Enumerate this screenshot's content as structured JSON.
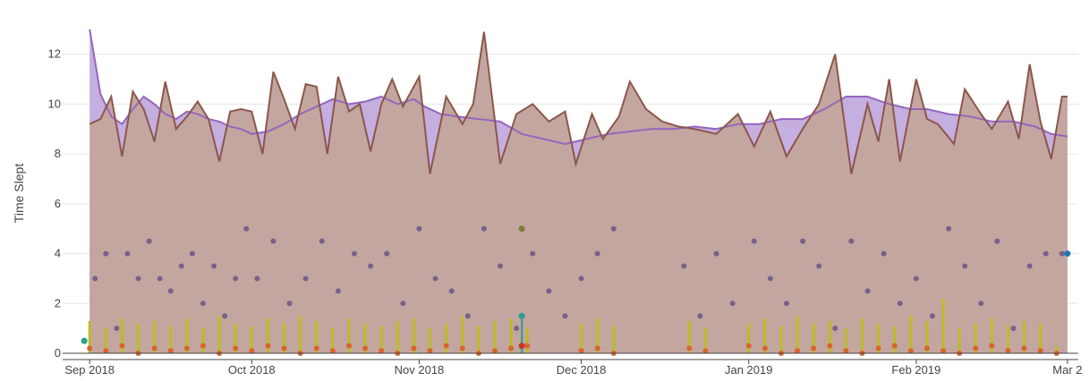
{
  "chart_data": {
    "type": "area",
    "ylabel": "Time Slept",
    "xlabel": "",
    "ylim": [
      -0.25,
      13.1
    ],
    "xlim": [
      "2018-08-27",
      "2019-03-03"
    ],
    "grid": true,
    "y_ticks": [
      0,
      2,
      4,
      6,
      8,
      10,
      12
    ],
    "y_tick_labels": [
      "0",
      "2",
      "4",
      "6",
      "8",
      "10",
      "12"
    ],
    "x_ticks": [
      "2018-09-01",
      "2018-10-01",
      "2018-11-01",
      "2018-12-01",
      "2019-01-01",
      "2019-02-01",
      "2019-03-01"
    ],
    "x_tick_labels": [
      "Sep 2018",
      "Oct 2018",
      "Nov 2018",
      "Dec 2018",
      "Jan 2019",
      "Feb 2019",
      "Mar 2"
    ],
    "colors": {
      "avg_fill": "#c5aee0",
      "avg_line": "#9467bd",
      "daily_fill": "#c4a6a0",
      "daily_line": "#8c564b",
      "overlap_fill": "#a77f93",
      "dots": "#6b5b8a",
      "bars": "#bcbd22",
      "markers": "#d9642a",
      "dot_blue": "#1f77b4",
      "dot_olive": "#7f7f3a",
      "dot_red": "#c0392b",
      "teal": "#2a9d8f"
    },
    "series": [
      {
        "name": "",
        "kind": "rolling-average-area",
        "x": [
          "2018-09-01",
          "2018-09-03",
          "2018-09-05",
          "2018-09-07",
          "2018-09-09",
          "2018-09-11",
          "2018-09-13",
          "2018-09-15",
          "2018-09-17",
          "2018-09-19",
          "2018-09-21",
          "2018-09-23",
          "2018-09-25",
          "2018-09-27",
          "2018-09-29",
          "2018-10-01",
          "2018-10-04",
          "2018-10-07",
          "2018-10-10",
          "2018-10-13",
          "2018-10-16",
          "2018-10-19",
          "2018-10-22",
          "2018-10-25",
          "2018-10-28",
          "2018-10-31",
          "2018-11-02",
          "2018-11-05",
          "2018-11-08",
          "2018-11-12",
          "2018-11-16",
          "2018-11-20",
          "2018-11-24",
          "2018-11-28",
          "2018-12-02",
          "2018-12-06",
          "2018-12-10",
          "2018-12-14",
          "2018-12-18",
          "2018-12-22",
          "2018-12-26",
          "2018-12-30",
          "2019-01-03",
          "2019-01-07",
          "2019-01-11",
          "2019-01-15",
          "2019-01-19",
          "2019-01-23",
          "2019-01-27",
          "2019-01-31",
          "2019-02-03",
          "2019-02-07",
          "2019-02-11",
          "2019-02-15",
          "2019-02-19",
          "2019-02-23",
          "2019-02-26",
          "2019-03-01"
        ],
        "y": [
          13.0,
          10.4,
          9.5,
          9.2,
          9.8,
          10.3,
          10.0,
          9.6,
          9.4,
          9.7,
          9.6,
          9.4,
          9.3,
          9.1,
          9.0,
          8.8,
          8.9,
          9.2,
          9.6,
          9.9,
          10.2,
          10.0,
          10.1,
          10.3,
          10.0,
          10.2,
          9.9,
          9.6,
          9.5,
          9.4,
          9.3,
          8.8,
          8.6,
          8.4,
          8.6,
          8.8,
          8.9,
          9.0,
          9.0,
          9.1,
          9.0,
          9.2,
          9.2,
          9.4,
          9.4,
          9.8,
          10.3,
          10.3,
          10.0,
          9.8,
          9.8,
          9.6,
          9.5,
          9.3,
          9.3,
          9.1,
          8.8,
          8.7
        ]
      },
      {
        "name": "",
        "kind": "daily-area",
        "x": [
          "2018-09-01",
          "2018-09-03",
          "2018-09-05",
          "2018-09-07",
          "2018-09-09",
          "2018-09-11",
          "2018-09-13",
          "2018-09-15",
          "2018-09-17",
          "2018-09-19",
          "2018-09-21",
          "2018-09-23",
          "2018-09-25",
          "2018-09-27",
          "2018-09-29",
          "2018-10-01",
          "2018-10-03",
          "2018-10-05",
          "2018-10-07",
          "2018-10-09",
          "2018-10-11",
          "2018-10-13",
          "2018-10-15",
          "2018-10-17",
          "2018-10-19",
          "2018-10-21",
          "2018-10-23",
          "2018-10-25",
          "2018-10-27",
          "2018-10-29",
          "2018-11-01",
          "2018-11-03",
          "2018-11-06",
          "2018-11-09",
          "2018-11-11",
          "2018-11-13",
          "2018-11-16",
          "2018-11-19",
          "2018-11-22",
          "2018-11-25",
          "2018-11-28",
          "2018-11-30",
          "2018-12-03",
          "2018-12-05",
          "2018-12-08",
          "2018-12-10",
          "2018-12-13",
          "2018-12-16",
          "2018-12-19",
          "2018-12-22",
          "2018-12-26",
          "2018-12-30",
          "2019-01-02",
          "2019-01-05",
          "2019-01-08",
          "2019-01-11",
          "2019-01-14",
          "2019-01-17",
          "2019-01-20",
          "2019-01-23",
          "2019-01-25",
          "2019-01-27",
          "2019-01-29",
          "2019-02-01",
          "2019-02-03",
          "2019-02-05",
          "2019-02-08",
          "2019-02-10",
          "2019-02-13",
          "2019-02-15",
          "2019-02-18",
          "2019-02-20",
          "2019-02-22",
          "2019-02-24",
          "2019-02-26",
          "2019-02-28",
          "2019-03-01"
        ],
        "y": [
          9.2,
          9.4,
          10.3,
          7.9,
          10.5,
          9.8,
          8.5,
          10.9,
          9.0,
          9.5,
          10.1,
          9.4,
          7.7,
          9.7,
          9.8,
          9.7,
          8.0,
          11.3,
          10.2,
          9.0,
          10.8,
          10.7,
          8.0,
          11.1,
          9.7,
          10.0,
          8.1,
          10.0,
          11.0,
          9.9,
          11.1,
          7.2,
          10.3,
          9.2,
          10.0,
          12.9,
          7.6,
          9.6,
          10.0,
          9.3,
          9.7,
          7.6,
          9.6,
          8.6,
          9.5,
          10.9,
          9.8,
          9.3,
          9.1,
          9.0,
          8.8,
          9.6,
          8.3,
          9.7,
          7.9,
          9.0,
          10.0,
          12.0,
          7.2,
          10.0,
          8.5,
          11.0,
          7.7,
          11.0,
          9.4,
          9.2,
          8.4,
          10.6,
          9.6,
          9.0,
          10.1,
          8.6,
          11.6,
          9.3,
          7.8,
          10.3,
          10.3
        ]
      },
      {
        "name": "",
        "kind": "dots",
        "x": [
          "2018-09-02",
          "2018-09-04",
          "2018-09-06",
          "2018-09-08",
          "2018-09-10",
          "2018-09-12",
          "2018-09-14",
          "2018-09-16",
          "2018-09-18",
          "2018-09-20",
          "2018-09-22",
          "2018-09-24",
          "2018-09-26",
          "2018-09-28",
          "2018-09-30",
          "2018-10-02",
          "2018-10-05",
          "2018-10-08",
          "2018-10-11",
          "2018-10-14",
          "2018-10-17",
          "2018-10-20",
          "2018-10-23",
          "2018-10-26",
          "2018-10-29",
          "2018-11-01",
          "2018-11-04",
          "2018-11-07",
          "2018-11-10",
          "2018-11-13",
          "2018-11-16",
          "2018-11-19",
          "2018-11-22",
          "2018-11-25",
          "2018-11-28",
          "2018-12-01",
          "2018-12-04",
          "2018-12-07",
          "2018-12-20",
          "2018-12-23",
          "2018-12-26",
          "2018-12-29",
          "2019-01-02",
          "2019-01-05",
          "2019-01-08",
          "2019-01-11",
          "2019-01-14",
          "2019-01-17",
          "2019-01-20",
          "2019-01-23",
          "2019-01-26",
          "2019-01-29",
          "2019-02-01",
          "2019-02-04",
          "2019-02-07",
          "2019-02-10",
          "2019-02-13",
          "2019-02-16",
          "2019-02-19",
          "2019-02-22",
          "2019-02-25",
          "2019-02-28"
        ],
        "y": [
          3.0,
          4.0,
          1.0,
          4.0,
          3.0,
          4.5,
          3.0,
          2.5,
          3.5,
          4.0,
          2.0,
          3.5,
          1.5,
          3.0,
          5.0,
          3.0,
          4.5,
          2.0,
          3.0,
          4.5,
          2.5,
          4.0,
          3.5,
          4.0,
          2.0,
          5.0,
          3.0,
          2.5,
          1.5,
          5.0,
          3.5,
          1.0,
          4.0,
          2.5,
          1.5,
          3.0,
          4.0,
          5.0,
          3.5,
          1.5,
          4.0,
          2.0,
          4.5,
          3.0,
          2.0,
          4.5,
          3.5,
          1.0,
          4.5,
          2.5,
          4.0,
          2.0,
          3.0,
          1.5,
          5.0,
          3.5,
          2.0,
          4.5,
          1.0,
          3.5,
          4.0,
          4.0
        ]
      },
      {
        "name": "",
        "kind": "bars",
        "x": [
          "2018-09-01",
          "2018-09-04",
          "2018-09-07",
          "2018-09-10",
          "2018-09-13",
          "2018-09-16",
          "2018-09-19",
          "2018-09-22",
          "2018-09-25",
          "2018-09-28",
          "2018-10-01",
          "2018-10-04",
          "2018-10-07",
          "2018-10-10",
          "2018-10-13",
          "2018-10-16",
          "2018-10-19",
          "2018-10-22",
          "2018-10-25",
          "2018-10-28",
          "2018-10-31",
          "2018-11-03",
          "2018-11-06",
          "2018-11-09",
          "2018-11-12",
          "2018-11-15",
          "2018-11-18",
          "2018-11-21",
          "2018-12-01",
          "2018-12-04",
          "2018-12-07",
          "2018-12-21",
          "2018-12-24",
          "2019-01-01",
          "2019-01-04",
          "2019-01-07",
          "2019-01-10",
          "2019-01-13",
          "2019-01-16",
          "2019-01-19",
          "2019-01-22",
          "2019-01-25",
          "2019-01-28",
          "2019-01-31",
          "2019-02-03",
          "2019-02-06",
          "2019-02-09",
          "2019-02-12",
          "2019-02-15",
          "2019-02-18",
          "2019-02-21",
          "2019-02-24",
          "2019-02-27"
        ],
        "y": [
          1.3,
          1.0,
          1.4,
          1.2,
          1.3,
          1.1,
          1.4,
          1.0,
          1.5,
          1.2,
          1.1,
          1.4,
          1.2,
          1.5,
          1.3,
          1.0,
          1.4,
          1.2,
          1.1,
          1.3,
          1.4,
          1.0,
          1.2,
          1.5,
          1.1,
          1.3,
          1.4,
          1.0,
          1.2,
          1.4,
          1.1,
          1.3,
          1.0,
          1.2,
          1.4,
          1.1,
          1.5,
          1.2,
          1.3,
          1.0,
          1.4,
          1.2,
          1.1,
          1.5,
          1.3,
          2.2,
          1.0,
          1.2,
          1.4,
          1.1,
          1.3,
          1.2,
          0.3
        ]
      },
      {
        "name": "",
        "kind": "markers",
        "x": [
          "2018-09-01",
          "2018-09-04",
          "2018-09-07",
          "2018-09-10",
          "2018-09-13",
          "2018-09-16",
          "2018-09-19",
          "2018-09-22",
          "2018-09-25",
          "2018-09-28",
          "2018-10-01",
          "2018-10-04",
          "2018-10-07",
          "2018-10-10",
          "2018-10-13",
          "2018-10-16",
          "2018-10-19",
          "2018-10-22",
          "2018-10-25",
          "2018-10-28",
          "2018-10-31",
          "2018-11-03",
          "2018-11-06",
          "2018-11-09",
          "2018-11-12",
          "2018-11-15",
          "2018-11-18",
          "2018-11-21",
          "2018-12-01",
          "2018-12-04",
          "2018-12-07",
          "2018-12-21",
          "2018-12-24",
          "2019-01-01",
          "2019-01-04",
          "2019-01-07",
          "2019-01-10",
          "2019-01-13",
          "2019-01-16",
          "2019-01-19",
          "2019-01-22",
          "2019-01-25",
          "2019-01-28",
          "2019-01-31",
          "2019-02-03",
          "2019-02-06",
          "2019-02-09",
          "2019-02-12",
          "2019-02-15",
          "2019-02-18",
          "2019-02-21",
          "2019-02-24",
          "2019-02-27"
        ],
        "y": [
          0.2,
          0.1,
          0.3,
          0.0,
          0.2,
          0.1,
          0.2,
          0.3,
          0.0,
          0.2,
          0.1,
          0.3,
          0.2,
          0.0,
          0.2,
          0.1,
          0.3,
          0.2,
          0.1,
          0.0,
          0.2,
          0.1,
          0.3,
          0.2,
          0.0,
          0.1,
          0.2,
          0.3,
          0.1,
          0.2,
          0.0,
          0.2,
          0.1,
          0.3,
          0.2,
          0.0,
          0.1,
          0.2,
          0.3,
          0.1,
          0.0,
          0.2,
          0.3,
          0.1,
          0.2,
          0.1,
          0.0,
          0.2,
          0.3,
          0.1,
          0.2,
          0.1,
          0.0
        ]
      },
      {
        "name": "",
        "kind": "special-points",
        "x": [
          "2018-08-31",
          "2018-11-20",
          "2018-11-20",
          "2018-11-20",
          "2019-03-01"
        ],
        "y": [
          0.5,
          5.0,
          1.5,
          0.3,
          4.0
        ],
        "colors": [
          "#2a9d8f",
          "#7f7f3a",
          "#2a9d8f",
          "#c0392b",
          "#1f77b4"
        ]
      }
    ]
  }
}
